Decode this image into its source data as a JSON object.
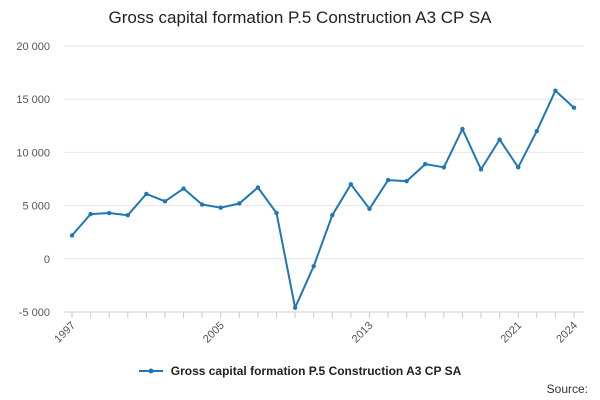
{
  "chart_data": {
    "type": "line",
    "title": "Gross capital formation P.5 Construction A3 CP SA",
    "xlabel": "",
    "ylabel": "",
    "x": [
      1997,
      1998,
      1999,
      2000,
      2001,
      2002,
      2003,
      2004,
      2005,
      2006,
      2007,
      2008,
      2009,
      2010,
      2011,
      2012,
      2013,
      2014,
      2015,
      2016,
      2017,
      2018,
      2019,
      2020,
      2021,
      2022,
      2023,
      2024
    ],
    "series": [
      {
        "name": "Gross capital formation P.5 Construction A3 CP SA",
        "color": "#1f77b4",
        "values": [
          2200,
          4200,
          4300,
          4100,
          6100,
          5400,
          6600,
          5100,
          4800,
          5200,
          6700,
          4300,
          -4600,
          -700,
          4100,
          7000,
          4700,
          7400,
          7300,
          8900,
          8600,
          12200,
          8400,
          11200,
          8600,
          12000,
          15800,
          14200
        ]
      }
    ],
    "ylim": [
      -5000,
      20000
    ],
    "yticks": [
      -5000,
      0,
      5000,
      10000,
      15000,
      20000
    ],
    "ytick_labels": [
      "-5 000",
      "0",
      "5 000",
      "10 000",
      "15 000",
      "20 000"
    ],
    "xtick_labels": [
      "1997",
      "2005",
      "2013",
      "2021",
      "2024"
    ],
    "xlim": [
      1997,
      2024
    ],
    "grid": true,
    "legend_position": "bottom"
  },
  "source_label": "Source:"
}
